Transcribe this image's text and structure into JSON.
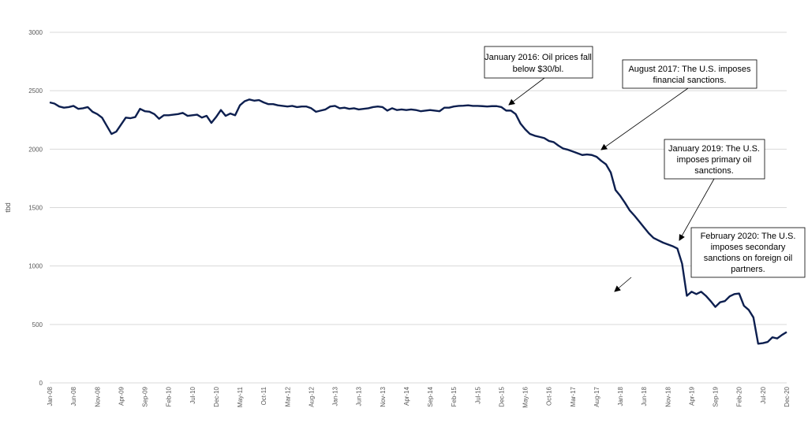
{
  "chart_data": {
    "type": "line",
    "title": "",
    "xlabel": "",
    "ylabel": "tbd",
    "ylim": [
      0,
      3000
    ],
    "yticks": [
      0,
      500,
      1000,
      1500,
      2000,
      2500,
      3000
    ],
    "grid": true,
    "legend": "none",
    "line_color": "#0d1f4f",
    "xtick_labels": [
      "Jan-08",
      "Jun-08",
      "Nov-08",
      "Apr-09",
      "Sep-09",
      "Feb-10",
      "Jul-10",
      "Dec-10",
      "May-11",
      "Oct-11",
      "Mar-12",
      "Aug-12",
      "Jan-13",
      "Jun-13",
      "Nov-13",
      "Apr-14",
      "Sep-14",
      "Feb-15",
      "Jul-15",
      "Dec-15",
      "May-16",
      "Oct-16",
      "Mar-17",
      "Aug-17",
      "Jan-18",
      "Jun-18",
      "Nov-18",
      "Apr-19",
      "Sep-19",
      "Feb-20",
      "Jul-20",
      "Dec-20"
    ],
    "series": [
      {
        "values": [
          2400,
          2390,
          2365,
          2355,
          2360,
          2370,
          2345,
          2350,
          2360,
          2320,
          2300,
          2270,
          2200,
          2130,
          2150,
          2210,
          2270,
          2265,
          2275,
          2345,
          2325,
          2320,
          2300,
          2260,
          2290,
          2290,
          2295,
          2300,
          2310,
          2285,
          2290,
          2295,
          2270,
          2285,
          2225,
          2275,
          2335,
          2285,
          2305,
          2290,
          2375,
          2410,
          2425,
          2415,
          2420,
          2400,
          2385,
          2385,
          2375,
          2370,
          2365,
          2370,
          2360,
          2365,
          2365,
          2350,
          2320,
          2330,
          2340,
          2365,
          2370,
          2350,
          2355,
          2345,
          2350,
          2340,
          2345,
          2350,
          2360,
          2365,
          2360,
          2330,
          2350,
          2335,
          2340,
          2335,
          2340,
          2335,
          2325,
          2330,
          2335,
          2330,
          2325,
          2355,
          2355,
          2365,
          2370,
          2372,
          2375,
          2370,
          2370,
          2368,
          2365,
          2368,
          2368,
          2360,
          2330,
          2330,
          2300,
          2220,
          2170,
          2130,
          2115,
          2105,
          2095,
          2070,
          2060,
          2030,
          2005,
          1995,
          1980,
          1965,
          1950,
          1955,
          1950,
          1935,
          1900,
          1870,
          1800,
          1650,
          1600,
          1540,
          1475,
          1430,
          1380,
          1330,
          1280,
          1240,
          1220,
          1200,
          1185,
          1170,
          1150,
          1020,
          745,
          780,
          760,
          780,
          745,
          700,
          650,
          690,
          700,
          740,
          760,
          765,
          660,
          625,
          560,
          335,
          340,
          350,
          390,
          380,
          410,
          435
        ]
      }
    ],
    "annotations": [
      {
        "lines": [
          "January 2016: Oil prices fall",
          "below $30/bl."
        ]
      },
      {
        "lines": [
          "August 2017: The U.S. imposes",
          "financial sanctions."
        ]
      },
      {
        "lines": [
          "January 2019: The U.S.",
          "imposes primary oil",
          "sanctions."
        ]
      },
      {
        "lines": [
          "February 2020: The U.S.",
          "imposes secondary",
          "sanctions on foreign oil",
          "partners."
        ]
      }
    ]
  }
}
